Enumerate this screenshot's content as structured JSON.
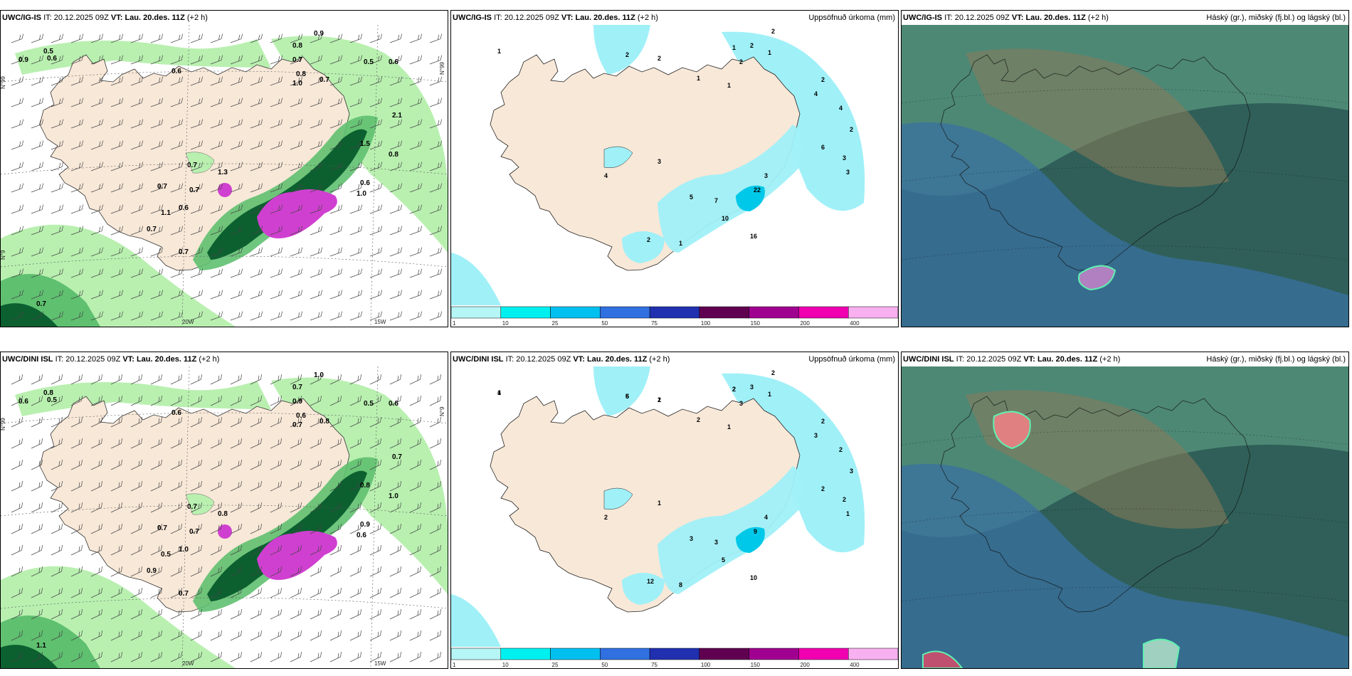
{
  "panels": [
    {
      "id": "p1",
      "run": "UWC/IG-IS",
      "it_label": "IT:",
      "it": "20.12.2025 09Z",
      "vt_label": "VT:",
      "vt": "Lau. 20.des. 11Z",
      "lead": "(+2 h)",
      "field": "",
      "labels": [
        "0.9",
        "0.5",
        "0.6",
        "0.6",
        "0.8",
        "0.9",
        "0.7",
        "0.8",
        "1.0",
        "0.7",
        "0.5",
        "0.6",
        "0.6",
        "0.7",
        "1.3",
        "0.7",
        "0.7",
        "1.1",
        "0.7",
        "0.7",
        "0.7",
        "2.1",
        "1.5",
        "0.8",
        "0.6",
        "1.0"
      ],
      "lat_labels": [
        "N°99",
        "N°99",
        "N°9"
      ],
      "lon_labels": [
        "20W",
        "15W"
      ]
    },
    {
      "id": "p2",
      "run": "UWC/IG-IS",
      "it_label": "IT:",
      "it": "20.12.2025 09Z",
      "vt_label": "VT:",
      "vt": "Lau. 20.des. 11Z",
      "lead": "(+2 h)",
      "field": "Uppsöfnuð úrkoma (mm)",
      "labels": [
        "1",
        "2",
        "2",
        "1",
        "2",
        "1",
        "2",
        "2",
        "1",
        "1",
        "2",
        "4",
        "4",
        "2",
        "3",
        "3",
        "6",
        "3",
        "4",
        "5",
        "7",
        "10",
        "16",
        "22",
        "3",
        "1",
        "2"
      ]
    },
    {
      "id": "p3",
      "run": "UWC/IG-IS",
      "it_label": "IT:",
      "it": "20.12.2025 09Z",
      "vt_label": "VT:",
      "vt": "Lau. 20.des. 11Z",
      "lead": "(+2 h)",
      "field": "Háský (gr.), miðský (fj.bl.) og lágský (bl.)"
    },
    {
      "id": "p4",
      "run": "UWC/DINI ISL",
      "it_label": "IT:",
      "it": "20.12.2025 09Z",
      "vt_label": "VT:",
      "vt": "Lau. 20.des. 11Z",
      "lead": "(+2 h)",
      "field": "",
      "labels": [
        "0.6",
        "0.8",
        "0.5",
        "0.6",
        "0.7",
        "1.0",
        "0.9",
        "0.6",
        "0.7",
        "0.8",
        "0.5",
        "0.6",
        "1.0",
        "0.7",
        "0.8",
        "0.7",
        "0.7",
        "0.5",
        "0.9",
        "0.7",
        "1.1",
        "0.7",
        "0.8",
        "1.0",
        "0.9",
        "0.6"
      ],
      "lat_labels": [
        "N°99",
        "N°9"
      ],
      "lon_labels": [
        "20W",
        "15W"
      ]
    },
    {
      "id": "p5",
      "run": "UWC/DINI ISL",
      "it_label": "IT:",
      "it": "20.12.2025 09Z",
      "vt_label": "VT:",
      "vt": "Lau. 20.des. 11Z",
      "lead": "(+2 h)",
      "field": "Uppsöfnuð úrkoma (mm)",
      "labels": [
        "1",
        "5",
        "2",
        "2",
        "3",
        "1",
        "2",
        "3",
        "2",
        "1",
        "2",
        "3",
        "2",
        "3",
        "2",
        "1",
        "2",
        "1",
        "2",
        "3",
        "3",
        "5",
        "10",
        "9",
        "4",
        "8",
        "12",
        "4",
        "6",
        "1",
        "2"
      ]
    },
    {
      "id": "p6",
      "run": "UWC/DINI ISL",
      "it_label": "IT:",
      "it": "20.12.2025 09Z",
      "vt_label": "VT:",
      "vt": "Lau. 20.des. 11Z",
      "lead": "(+2 h)",
      "field": "Háský (gr.), miðský (fj.bl.) og lágský (bl.)"
    }
  ],
  "colorbar": {
    "ticks": [
      "1",
      "10",
      "25",
      "50",
      "75",
      "100",
      "150",
      "200",
      "400"
    ],
    "colors": [
      "#b7f6f6",
      "#00f0f0",
      "#00c0f0",
      "#3070e0",
      "#2030b0",
      "#600050",
      "#a00090",
      "#f000b0",
      "#f8b0f0"
    ]
  },
  "colors": {
    "land": "#f8e8d8",
    "green_light": "#b9f0b0",
    "green_mid": "#5fc070",
    "green_dark": "#0c6030",
    "purple": "#d040d0",
    "cyan": "#a0f0f8",
    "cloud_bg": "#2f5f58",
    "cloud_mid": "#5a9a82",
    "cloud_low": "#3a70a0",
    "cloud_high": "#8a7a5a"
  }
}
